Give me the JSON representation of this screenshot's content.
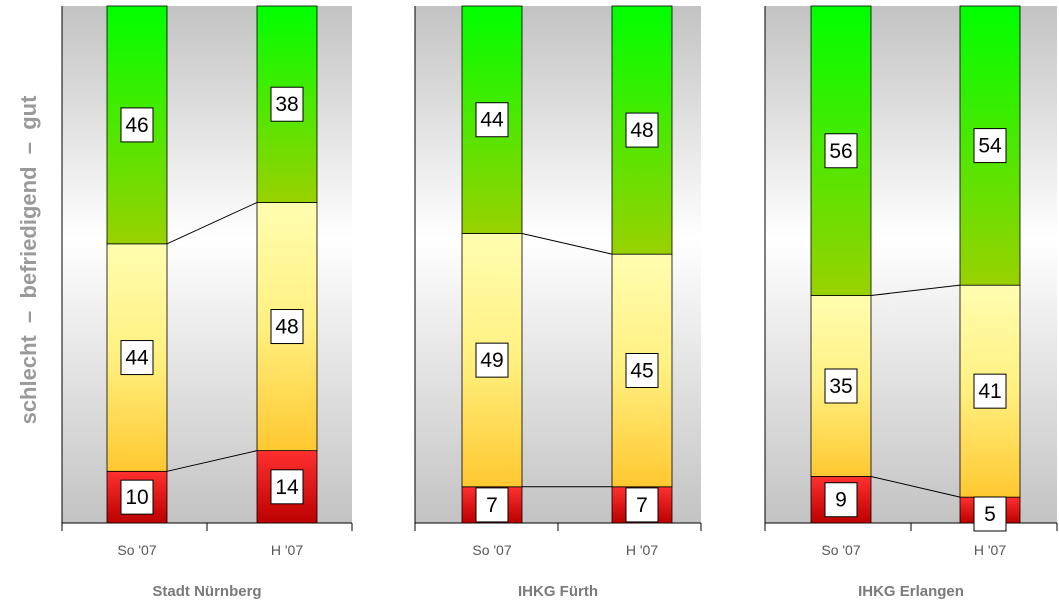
{
  "y_axis_label": "schlecht  –  befriedigend  –  gut",
  "chart_data": [
    {
      "type": "bar",
      "stacked": true,
      "title": "Stadt Nürnberg",
      "categories": [
        "So '07",
        "H '07"
      ],
      "series": [
        {
          "values": [
            10,
            14
          ]
        },
        {
          "values": [
            44,
            48
          ]
        },
        {
          "values": [
            46,
            38
          ]
        }
      ],
      "ylim": [
        0,
        100
      ],
      "grid": false
    },
    {
      "type": "bar",
      "stacked": true,
      "title": "IHKG Fürth",
      "categories": [
        "So '07",
        "H '07"
      ],
      "series": [
        {
          "values": [
            7,
            7
          ]
        },
        {
          "values": [
            49,
            45
          ]
        },
        {
          "values": [
            44,
            48
          ]
        }
      ],
      "ylim": [
        0,
        100
      ],
      "grid": false
    },
    {
      "type": "bar",
      "stacked": true,
      "title": "IHKG Erlangen",
      "categories": [
        "So '07",
        "H '07"
      ],
      "series": [
        {
          "values": [
            9,
            5
          ]
        },
        {
          "values": [
            35,
            41
          ]
        },
        {
          "values": [
            56,
            54
          ]
        }
      ],
      "ylim": [
        0,
        100
      ],
      "grid": false
    }
  ],
  "colors": {
    "bad_dark": "#bb0000",
    "bad_light": "#ff3030",
    "mid_top": "#fffdb0",
    "mid_bottom": "#ffc830",
    "good_top": "#00ff00",
    "good_bottom": "#99d100",
    "background_edge": "#c3c3c3",
    "background_center": "#ffffff",
    "title_text": "#7a7a7a"
  }
}
